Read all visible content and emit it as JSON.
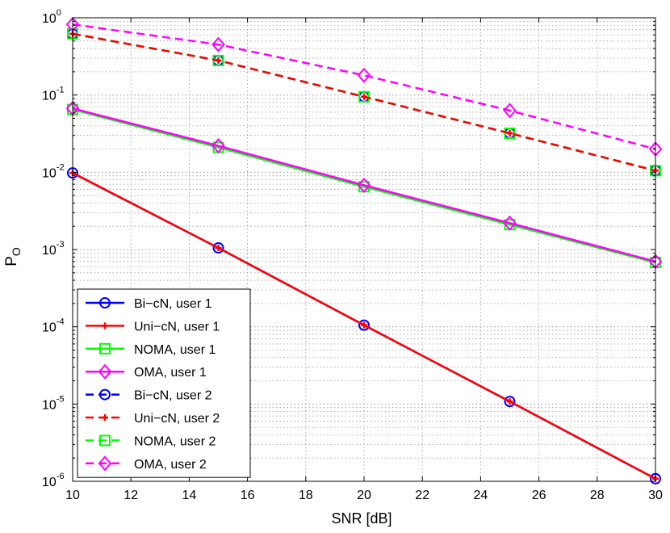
{
  "chart_data": {
    "type": "line",
    "yscale": "log",
    "xlabel": "SNR [dB]",
    "ylabel": {
      "main": "P",
      "sub": "O"
    },
    "xlim": [
      10,
      30
    ],
    "ylim": [
      1e-06,
      1
    ],
    "x_ticks": [
      "10",
      "12",
      "14",
      "16",
      "18",
      "20",
      "22",
      "24",
      "26",
      "28",
      "30"
    ],
    "y_ticks": [
      {
        "base": "10",
        "exp": "0"
      },
      {
        "base": "10",
        "exp": "-1"
      },
      {
        "base": "10",
        "exp": "-2"
      },
      {
        "base": "10",
        "exp": "-3"
      },
      {
        "base": "10",
        "exp": "-4"
      },
      {
        "base": "10",
        "exp": "-5"
      },
      {
        "base": "10",
        "exp": "-6"
      }
    ],
    "grid": true,
    "legend_position": "bottom-left",
    "x": [
      10,
      15,
      20,
      25,
      30
    ],
    "series": [
      {
        "name": "Bi−cN, user 1",
        "color": "#0000ff",
        "dash": "solid",
        "marker": "circle",
        "values": [
          0.0098,
          0.00105,
          0.000105,
          1.08e-05,
          1.08e-06
        ]
      },
      {
        "name": "Uni−cN, user 1",
        "color": "#ff0000",
        "dash": "solid",
        "marker": "plus",
        "values": [
          0.0098,
          0.00105,
          0.000105,
          1.08e-05,
          1.08e-06
        ]
      },
      {
        "name": "NOMA, user 1",
        "color": "#00ff00",
        "dash": "solid",
        "marker": "square",
        "values": [
          0.065,
          0.021,
          0.0065,
          0.0021,
          0.00068
        ]
      },
      {
        "name": "OMA, user 1",
        "color": "#ff00ff",
        "dash": "solid",
        "marker": "diamond",
        "values": [
          0.067,
          0.022,
          0.0068,
          0.0022,
          0.0007
        ]
      },
      {
        "name": "Bi−cN, user 2",
        "color": "#0000ff",
        "dash": "dashed",
        "marker": "circle",
        "values": [
          0.62,
          0.28,
          0.095,
          0.032,
          0.0105
        ]
      },
      {
        "name": "Uni−cN, user 2",
        "color": "#ff0000",
        "dash": "dashed",
        "marker": "plus",
        "values": [
          0.62,
          0.28,
          0.095,
          0.032,
          0.0105
        ]
      },
      {
        "name": "NOMA, user 2",
        "color": "#00ff00",
        "dash": "dashed",
        "marker": "square",
        "values": [
          0.62,
          0.28,
          0.095,
          0.032,
          0.0105
        ]
      },
      {
        "name": "OMA, user 2",
        "color": "#ff00ff",
        "dash": "dashed",
        "marker": "diamond",
        "values": [
          0.82,
          0.45,
          0.18,
          0.063,
          0.02
        ]
      }
    ]
  }
}
